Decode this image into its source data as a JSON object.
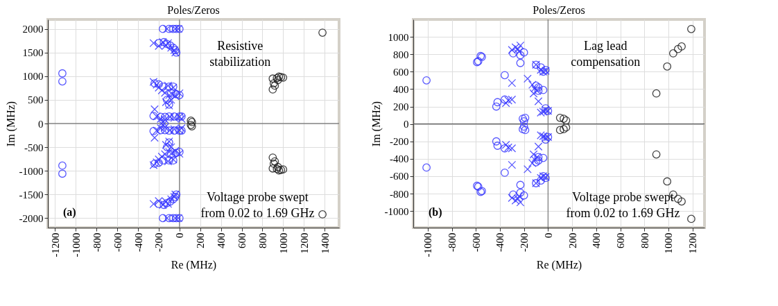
{
  "chart_data": [
    {
      "type": "scatter",
      "title": "Poles/Zeros",
      "xlabel": "Re (MHz)",
      "ylabel": "Im (MHz)",
      "xlim": [
        -1270,
        1540
      ],
      "ylim": [
        -2200,
        2200
      ],
      "xticks": [
        -1200,
        -1000,
        -800,
        -600,
        -400,
        -200,
        0,
        200,
        400,
        600,
        800,
        1000,
        1200,
        1400
      ],
      "yticks": [
        -2000,
        -1500,
        -1000,
        -500,
        0,
        500,
        1000,
        1500,
        2000
      ],
      "grid": true,
      "ref_lines": [
        {
          "axis": "x",
          "value": 0,
          "color": "#777777"
        },
        {
          "axis": "y",
          "value": 0,
          "color": "#555555"
        }
      ],
      "annotations": [
        "Resistive\nstabilization",
        "Voltage probe swept\nfrom 0.02 to 1.69 GHz",
        "(a)"
      ],
      "series": [
        {
          "color": "#3b3bff",
          "marker": "circle",
          "x": [
            -1130,
            -1130,
            -1130,
            -1130,
            -160,
            -100,
            -60,
            -30,
            0,
            -160,
            -100,
            -60,
            -30,
            0,
            -200,
            -150,
            -120,
            -90,
            -60,
            -40,
            -30,
            -200,
            -150,
            -120,
            -90,
            -60,
            -40,
            -30,
            -240,
            -200,
            -160,
            -100,
            -60,
            -30,
            0,
            -80,
            -120,
            -100,
            -240,
            -200,
            -160,
            -100,
            -60,
            -30,
            0,
            -80,
            -120,
            -100,
            -250,
            -180,
            -140,
            -100,
            -50,
            0,
            20,
            -250,
            -180,
            -140,
            -100,
            -50,
            0,
            20
          ],
          "values": [
            1060,
            890,
            -890,
            -1060,
            2000,
            2000,
            2000,
            2000,
            2000,
            -2000,
            -2000,
            -2000,
            -2000,
            -2000,
            1700,
            1720,
            1680,
            1650,
            1600,
            1550,
            1500,
            -1700,
            -1720,
            -1680,
            -1650,
            -1600,
            -1550,
            -1500,
            850,
            830,
            780,
            780,
            780,
            620,
            600,
            650,
            500,
            400,
            -850,
            -830,
            -780,
            -780,
            -780,
            -620,
            -600,
            -650,
            -500,
            -400,
            160,
            140,
            140,
            150,
            150,
            150,
            150,
            -160,
            -140,
            -140,
            -150,
            -150,
            -150,
            -150
          ]
        },
        {
          "color": "#3b3bff",
          "marker": "cross",
          "x": [
            -250,
            -200,
            -160,
            -130,
            -110,
            -80,
            -50,
            -40,
            -120,
            -40,
            -10,
            -250,
            -200,
            -160,
            -130,
            -110,
            -80,
            -50,
            -40,
            -120,
            -40,
            -10,
            -250,
            -220,
            -200,
            -170,
            -140,
            -100,
            -70,
            -40,
            0,
            -130,
            -100,
            -80,
            -110,
            -60,
            -250,
            -220,
            -200,
            -170,
            -140,
            -100,
            -70,
            -40,
            0,
            -130,
            -100,
            -80,
            -110,
            -60,
            -240,
            -220,
            -180,
            -140,
            -90,
            -50,
            0,
            20,
            -160,
            -240,
            -220,
            -180,
            -140,
            -90,
            -50,
            0,
            20,
            -160
          ],
          "values": [
            1700,
            1640,
            1720,
            1650,
            1700,
            1600,
            1550,
            1500,
            2000,
            2000,
            2000,
            -1700,
            -1640,
            -1720,
            -1650,
            -1700,
            -1600,
            -1550,
            -1500,
            -2000,
            -2000,
            -2000,
            880,
            820,
            760,
            700,
            650,
            600,
            620,
            580,
            640,
            450,
            380,
            500,
            800,
            760,
            -880,
            -820,
            -760,
            -700,
            -650,
            -600,
            -620,
            -580,
            -640,
            -450,
            -380,
            -500,
            -800,
            -760,
            300,
            150,
            100,
            80,
            140,
            120,
            140,
            100,
            30,
            -300,
            -150,
            -100,
            -80,
            -140,
            -120,
            -140,
            -100,
            -30
          ]
        },
        {
          "color": "#222222",
          "marker": "circle",
          "x": [
            110,
            120,
            110,
            120,
            900,
            910,
            920,
            900,
            940,
            960,
            980,
            1000,
            950,
            1380,
            900,
            910,
            920,
            900,
            940,
            960,
            980,
            1000,
            950,
            1380
          ],
          "values": [
            60,
            30,
            -30,
            -60,
            720,
            850,
            800,
            950,
            960,
            990,
            980,
            970,
            920,
            1920,
            -720,
            -850,
            -800,
            -950,
            -960,
            -990,
            -980,
            -970,
            -920,
            -1920
          ]
        }
      ]
    },
    {
      "type": "scatter",
      "title": "Poles/Zeros",
      "xlabel": "Re (MHz)",
      "ylabel": "Im (MHz)",
      "xlim": [
        -1120,
        1300
      ],
      "ylim": [
        -1190,
        1200
      ],
      "xticks": [
        -1000,
        -800,
        -600,
        -400,
        -200,
        0,
        200,
        400,
        600,
        800,
        1000,
        1200
      ],
      "yticks": [
        -1000,
        -800,
        -600,
        -400,
        -200,
        0,
        200,
        400,
        600,
        800,
        1000
      ],
      "grid": true,
      "ref_lines": [
        {
          "axis": "x",
          "value": 0,
          "color": "#777777"
        },
        {
          "axis": "y",
          "value": 0,
          "color": "#555555"
        }
      ],
      "annotations": [
        "Lag lead\ncompensation",
        "Voltage probe swept\nfrom 0.02 to 1.69 GHz",
        "(b)"
      ],
      "series": [
        {
          "color": "#3b3bff",
          "marker": "circle",
          "x": [
            -1010,
            -590,
            -580,
            -560,
            -550,
            -360,
            -430,
            -420,
            -360,
            -290,
            -230,
            -230,
            -200,
            -210,
            -190,
            -200,
            -100,
            -60,
            -40,
            -20,
            -100,
            -80,
            -40,
            -20,
            0,
            -80,
            -1010,
            -590,
            -580,
            -560,
            -550,
            -360,
            -430,
            -420,
            -360,
            -290,
            -230,
            -230,
            -200,
            -210,
            -190,
            -200,
            -100,
            -60,
            -40,
            -20,
            -100,
            -80,
            -40,
            -20,
            0,
            -80
          ],
          "values": [
            500,
            710,
            720,
            780,
            770,
            560,
            200,
            250,
            280,
            810,
            700,
            790,
            820,
            60,
            70,
            30,
            680,
            650,
            600,
            620,
            440,
            380,
            390,
            180,
            150,
            420,
            -500,
            -710,
            -720,
            -780,
            -770,
            -560,
            -200,
            -250,
            -280,
            -810,
            -700,
            -790,
            -820,
            -60,
            -70,
            -30,
            -680,
            -650,
            -600,
            -620,
            -440,
            -380,
            -390,
            -180,
            -150,
            -420
          ]
        },
        {
          "color": "#3b3bff",
          "marker": "cross",
          "x": [
            -300,
            -270,
            -250,
            -230,
            -240,
            -300,
            -350,
            -330,
            -300,
            -170,
            -130,
            -110,
            -90,
            -120,
            -80,
            -100,
            -60,
            -40,
            -20,
            -40,
            -20,
            0,
            -60,
            -300,
            -270,
            -250,
            -230,
            -240,
            -300,
            -350,
            -330,
            -300,
            -170,
            -130,
            -110,
            -90,
            -120,
            -80,
            -100,
            -60,
            -40,
            -20,
            -40,
            -20,
            0,
            -60
          ],
          "values": [
            850,
            880,
            860,
            900,
            830,
            470,
            240,
            270,
            280,
            520,
            450,
            410,
            380,
            350,
            260,
            680,
            620,
            600,
            610,
            140,
            160,
            150,
            130,
            -850,
            -880,
            -860,
            -900,
            -830,
            -470,
            -240,
            -270,
            -280,
            -520,
            -450,
            -410,
            -380,
            -350,
            -260,
            -680,
            -620,
            -600,
            -610,
            -140,
            -160,
            -150,
            -130
          ]
        },
        {
          "color": "#222222",
          "marker": "circle",
          "x": [
            100,
            130,
            150,
            100,
            130,
            150,
            900,
            990,
            1040,
            1080,
            1110,
            1190,
            900,
            990,
            1040,
            1080,
            1110,
            1190
          ],
          "values": [
            70,
            60,
            40,
            -70,
            -60,
            -40,
            350,
            660,
            810,
            860,
            890,
            1090,
            -350,
            -660,
            -810,
            -860,
            -890,
            -1090
          ]
        }
      ]
    }
  ]
}
